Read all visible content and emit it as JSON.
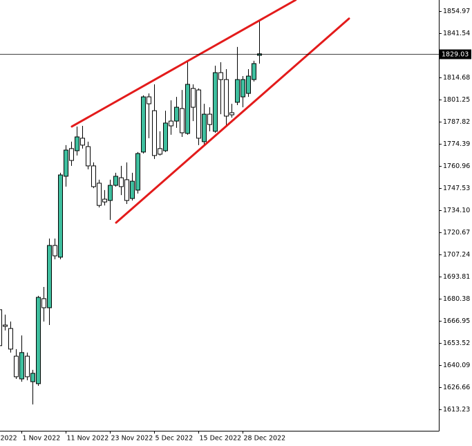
{
  "chart_data": {
    "type": "candlestick",
    "categories": [
      "2022",
      null,
      null,
      null,
      "1 Nov 2022",
      null,
      null,
      null,
      null,
      null,
      null,
      null,
      "11 Nov 2022",
      null,
      null,
      null,
      null,
      null,
      null,
      null,
      "23 Nov 2022",
      null,
      null,
      null,
      null,
      null,
      null,
      null,
      "5 Dec 2022",
      null,
      null,
      null,
      null,
      null,
      null,
      null,
      "15 Dec 2022",
      null,
      null,
      null,
      null,
      null,
      null,
      null,
      "28 Dec 2022",
      null,
      null,
      null
    ],
    "open": [
      1673.7,
      1664.4,
      1662.3,
      1645.5,
      1631.7,
      1645.5,
      1630.0,
      1628.8,
      1680.4,
      1674.9,
      1712.7,
      1705.6,
      1754.7,
      1771.5,
      1770.2,
      1777.8,
      1772.7,
      1761.0,
      1750.5,
      1740.8,
      1740.0,
      1749.2,
      1753.8,
      1752.6,
      1741.2,
      1746.3,
      1769.4,
      1802.9,
      1794.5,
      1771.5,
      1770.2,
      1788.2,
      1788.2,
      1795.8,
      1780.7,
      1808.0,
      1807.1,
      1775.7,
      1792.4,
      1782.0,
      1817.6,
      1813.4,
      1793.3,
      1799.6,
      1802.9,
      1805.0,
      1813.4,
      1828.1
    ],
    "high": [
      1677.0,
      1670.7,
      1666.5,
      1649.8,
      1658.1,
      1647.7,
      1637.2,
      1682.1,
      1687.5,
      1716.9,
      1716.9,
      1756.8,
      1773.6,
      1775.7,
      1784.9,
      1785.3,
      1775.7,
      1763.1,
      1752.6,
      1746.3,
      1752.6,
      1756.8,
      1761.0,
      1763.1,
      1756.8,
      1769.4,
      1803.8,
      1805.0,
      1810.5,
      1782.0,
      1794.5,
      1800.8,
      1802.9,
      1807.1,
      1824.8,
      1810.5,
      1808.0,
      1798.7,
      1796.6,
      1821.8,
      1823.9,
      1819.7,
      1798.7,
      1833.2,
      1815.5,
      1819.7,
      1824.8,
      1849.9
    ],
    "low": [
      1647.7,
      1661.1,
      1647.7,
      1631.7,
      1630.0,
      1630.9,
      1616.2,
      1627.5,
      1666.5,
      1664.4,
      1704.3,
      1704.3,
      1748.4,
      1761.0,
      1767.3,
      1771.5,
      1758.9,
      1747.5,
      1735.8,
      1737.0,
      1728.2,
      1748.4,
      1743.3,
      1737.9,
      1740.0,
      1744.2,
      1768.5,
      1777.8,
      1765.2,
      1767.3,
      1769.4,
      1779.9,
      1784.1,
      1778.6,
      1779.9,
      1788.2,
      1773.6,
      1773.6,
      1782.0,
      1781.1,
      1792.4,
      1785.3,
      1790.3,
      1797.9,
      1796.6,
      1802.9,
      1812.2,
      1823.1
    ],
    "close": [
      1651.9,
      1663.6,
      1649.8,
      1633.0,
      1647.7,
      1633.0,
      1635.1,
      1681.2,
      1674.9,
      1712.7,
      1706.4,
      1755.5,
      1770.6,
      1764.3,
      1778.6,
      1773.6,
      1761.0,
      1748.4,
      1737.0,
      1739.1,
      1749.2,
      1754.7,
      1748.4,
      1740.0,
      1751.7,
      1768.5,
      1802.9,
      1798.7,
      1767.3,
      1768.1,
      1787.0,
      1785.3,
      1796.6,
      1781.1,
      1810.5,
      1796.6,
      1777.8,
      1792.4,
      1786.1,
      1817.6,
      1813.4,
      1791.2,
      1792.0,
      1813.4,
      1813.4,
      1815.5,
      1823.1,
      1829.03
    ],
    "up_color": "#3fbf9f",
    "down_color": "#ffffff",
    "outline_color": "#000000",
    "ylim": [
      1600.21,
      1861.69
    ],
    "yticks": [
      1854.97,
      1841.54,
      1814.68,
      1801.25,
      1787.82,
      1774.39,
      1760.96,
      1747.53,
      {
        "value": 1734.1,
        "label": "1734.10"
      },
      1720.67,
      1707.24,
      1693.81,
      1680.38,
      1666.95,
      1653.52,
      1640.09,
      1626.66,
      1613.23
    ],
    "current_price": 1829.03,
    "trendlines": [
      {
        "color": "#e31b1b",
        "x": [
          13.125,
          53.6
        ],
        "y": [
          1784.9,
          1861.7
        ]
      },
      {
        "color": "#e31b1b",
        "x": [
          21.125,
          63.25
        ],
        "y": [
          1726.56,
          1850.4
        ]
      }
    ],
    "grid": false
  }
}
